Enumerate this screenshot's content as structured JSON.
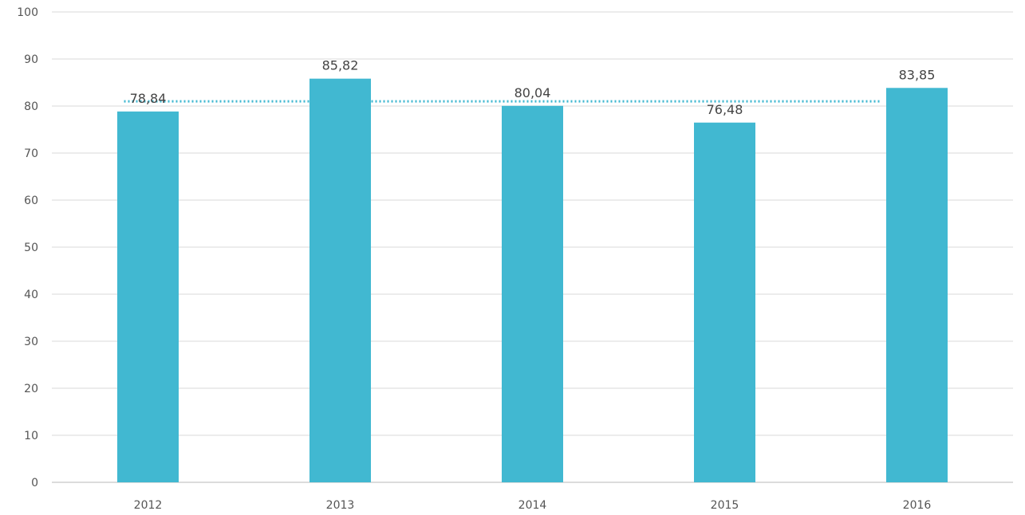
{
  "chart_data": {
    "type": "bar",
    "categories": [
      "2012",
      "2013",
      "2014",
      "2015",
      "2016"
    ],
    "values": [
      78.84,
      85.82,
      80.04,
      76.48,
      83.85
    ],
    "data_labels": [
      "78,84",
      "85,82",
      "80,04",
      "76,48",
      "83,85"
    ],
    "ylim": [
      0,
      100
    ],
    "yticks": [
      0,
      10,
      20,
      30,
      40,
      50,
      60,
      70,
      80,
      90,
      100
    ],
    "reference_line": {
      "value": 81.0,
      "style": "dotted"
    },
    "grid": true,
    "title": "",
    "xlabel": "",
    "ylabel": "",
    "colors": {
      "bar": "#41b8d1",
      "reference_line": "#41b8d1"
    }
  }
}
